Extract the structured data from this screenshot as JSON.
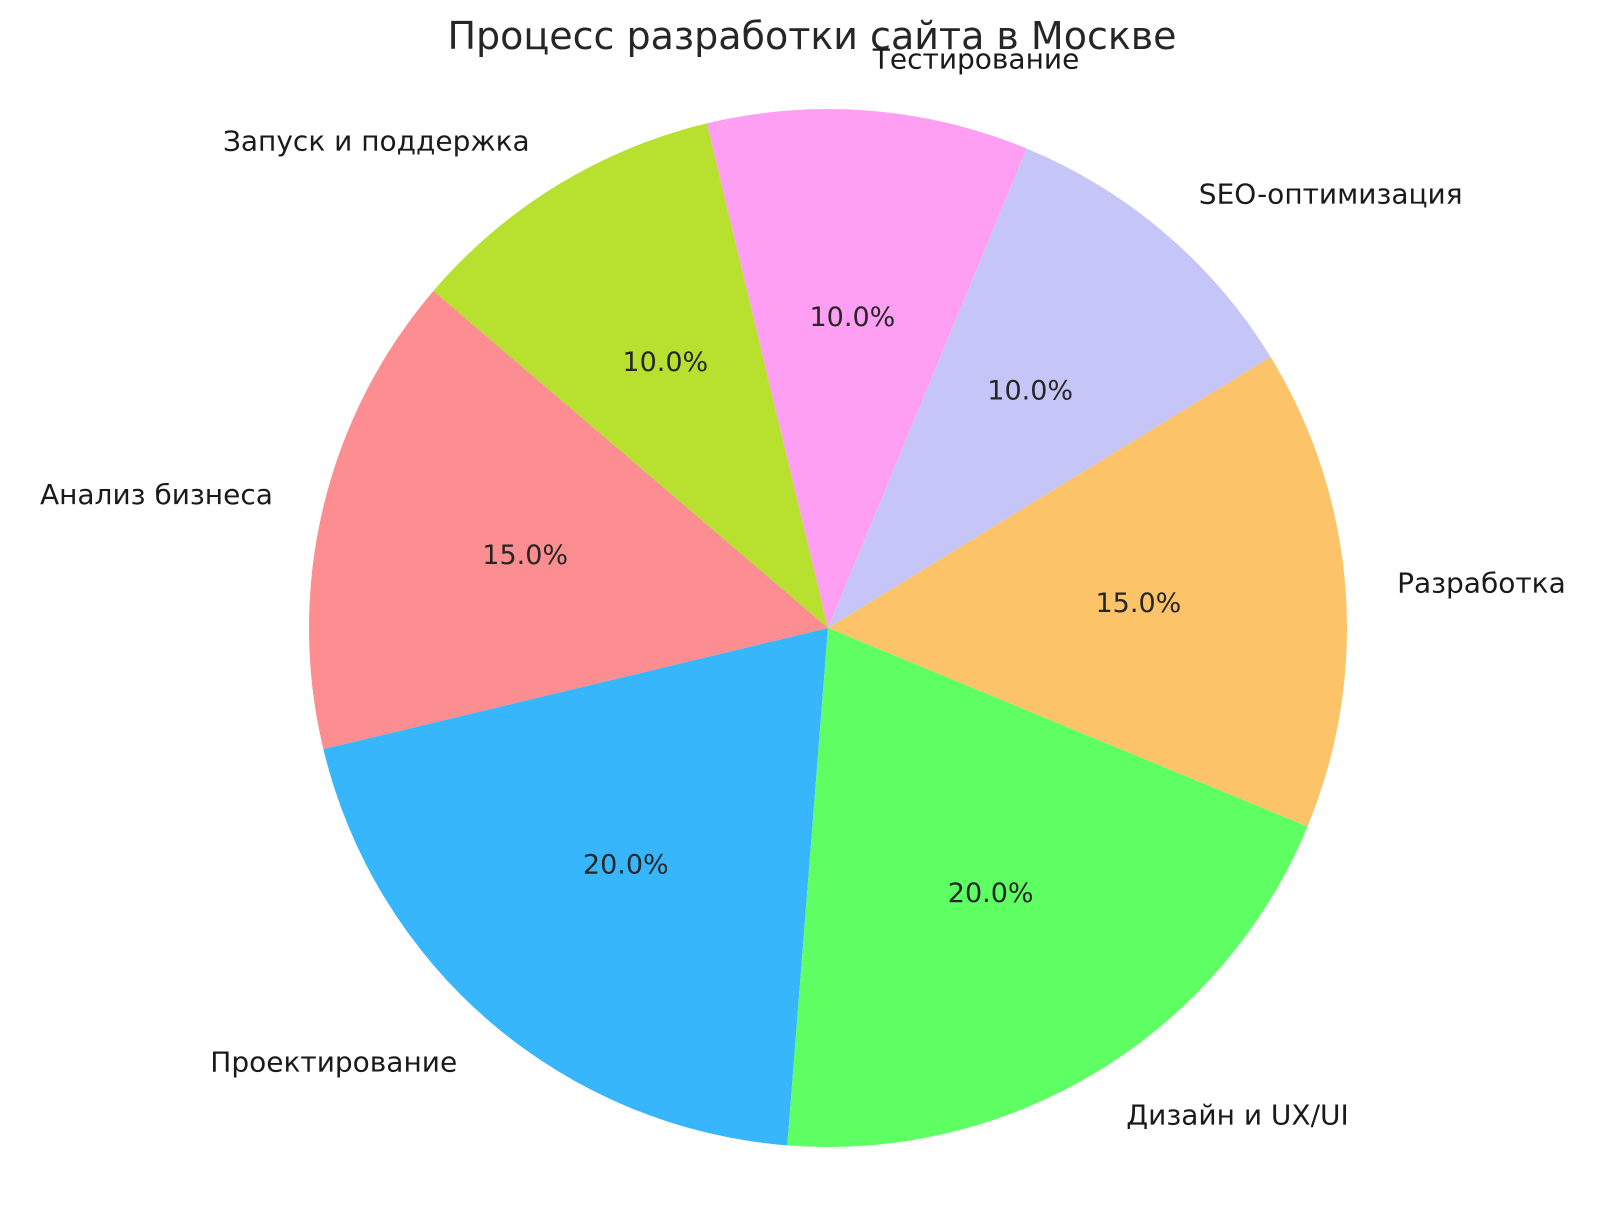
{
  "title": "Процесс разработки сайта в Москве",
  "text_color": "#262626",
  "background_color": "#ffffff",
  "chart_data": {
    "type": "pie",
    "title": "Процесс разработки сайта в Москве",
    "legend_position": "none",
    "start_angle_deg": -22.5,
    "direction": "counterclockwise",
    "label_distance": 1.1,
    "pct_distance": 0.6,
    "slices": [
      {
        "label": "Разработка",
        "value": 15,
        "pct_label": "15.0%",
        "color": "#fcc369"
      },
      {
        "label": "SEO-оптимизация",
        "value": 10,
        "pct_label": "10.0%",
        "color": "#c5c5f8"
      },
      {
        "label": "Тестирование",
        "value": 10,
        "pct_label": "10.0%",
        "color": "#ff9ff3"
      },
      {
        "label": "Запуск и поддержка",
        "value": 10,
        "pct_label": "10.0%",
        "color": "#b7e02f"
      },
      {
        "label": "Анализ бизнеса",
        "value": 15,
        "pct_label": "15.0%",
        "color": "#fc8d90"
      },
      {
        "label": "Проектирование",
        "value": 20,
        "pct_label": "20.0%",
        "color": "#38b6fc"
      },
      {
        "label": "Дизайн и UX/UI",
        "value": 20,
        "pct_label": "20.0%",
        "color": "#5eff63"
      }
    ]
  }
}
